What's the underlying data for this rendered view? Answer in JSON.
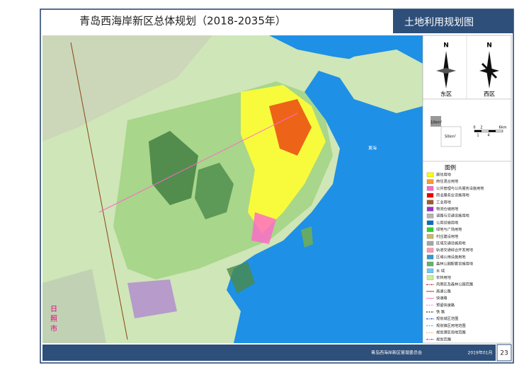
{
  "header": {
    "title": "青岛西海岸新区总体规划（2018-2035年）",
    "map_name": "土地利用规划图"
  },
  "compass": {
    "north_labels": [
      "N",
      "N"
    ],
    "east": "东区",
    "west": "西区"
  },
  "scale": {
    "area_small": "10km²",
    "area_large": "50km²",
    "bar_top": [
      "0",
      "2",
      "6km"
    ],
    "bar_bottom": [
      "1",
      "4"
    ]
  },
  "map": {
    "city_label": [
      "日",
      "照",
      "市"
    ],
    "sea_label": "黄海"
  },
  "legend": {
    "title": "图例",
    "areas": [
      {
        "label": "居住用地",
        "color": "#ffff00"
      },
      {
        "label": "商住混合用地",
        "color": "#ff9933"
      },
      {
        "label": "公共管理与公共服务设施用地",
        "color": "#ff66cc"
      },
      {
        "label": "商业服务业设施用地",
        "color": "#e60000"
      },
      {
        "label": "工业用地",
        "color": "#a05a2c"
      },
      {
        "label": "物流仓储用地",
        "color": "#9933cc"
      },
      {
        "label": "道路与交通设施用地",
        "color": "#b3b3b3"
      },
      {
        "label": "公用设施用地",
        "color": "#0070c0"
      },
      {
        "label": "绿地与广场用地",
        "color": "#33cc33"
      },
      {
        "label": "村庄建设用地",
        "color": "#ccb866"
      },
      {
        "label": "区域交通设施用地",
        "color": "#a6a6a6"
      },
      {
        "label": "轨道交通综合开发用地",
        "color": "#ff99aa"
      },
      {
        "label": "区域公用设施用地",
        "color": "#3399cc"
      },
      {
        "label": "森林公园配套设施用地",
        "color": "#66b266"
      },
      {
        "label": "水 域",
        "color": "#66ccff"
      },
      {
        "label": "农林用地",
        "color": "#ccee99"
      }
    ],
    "lines": [
      {
        "label": "风景区及森林公园范围",
        "color": "#cc0000",
        "style": "dashdot"
      },
      {
        "label": "高速公路",
        "color": "#8b4513",
        "style": "solid"
      },
      {
        "label": "快速路",
        "color": "#ff66cc",
        "style": "solid"
      },
      {
        "label": "预留快速路",
        "color": "#ff66cc",
        "style": "dashed"
      },
      {
        "label": "铁 路",
        "color": "#000000",
        "style": "dashed"
      },
      {
        "label": "规划城区范围",
        "color": "#0033cc",
        "style": "dashdot"
      },
      {
        "label": "规划镇区用地范围",
        "color": "#00aaff",
        "style": "dashed"
      },
      {
        "label": "规划港区用地范围",
        "color": "#ff9933",
        "style": "dashed"
      },
      {
        "label": "规划范围",
        "color": "#cc00cc",
        "style": "dashdot"
      }
    ]
  },
  "footer": {
    "org": "青岛西海岸新区管理委员会",
    "date": "2019年01月",
    "page": "23"
  }
}
